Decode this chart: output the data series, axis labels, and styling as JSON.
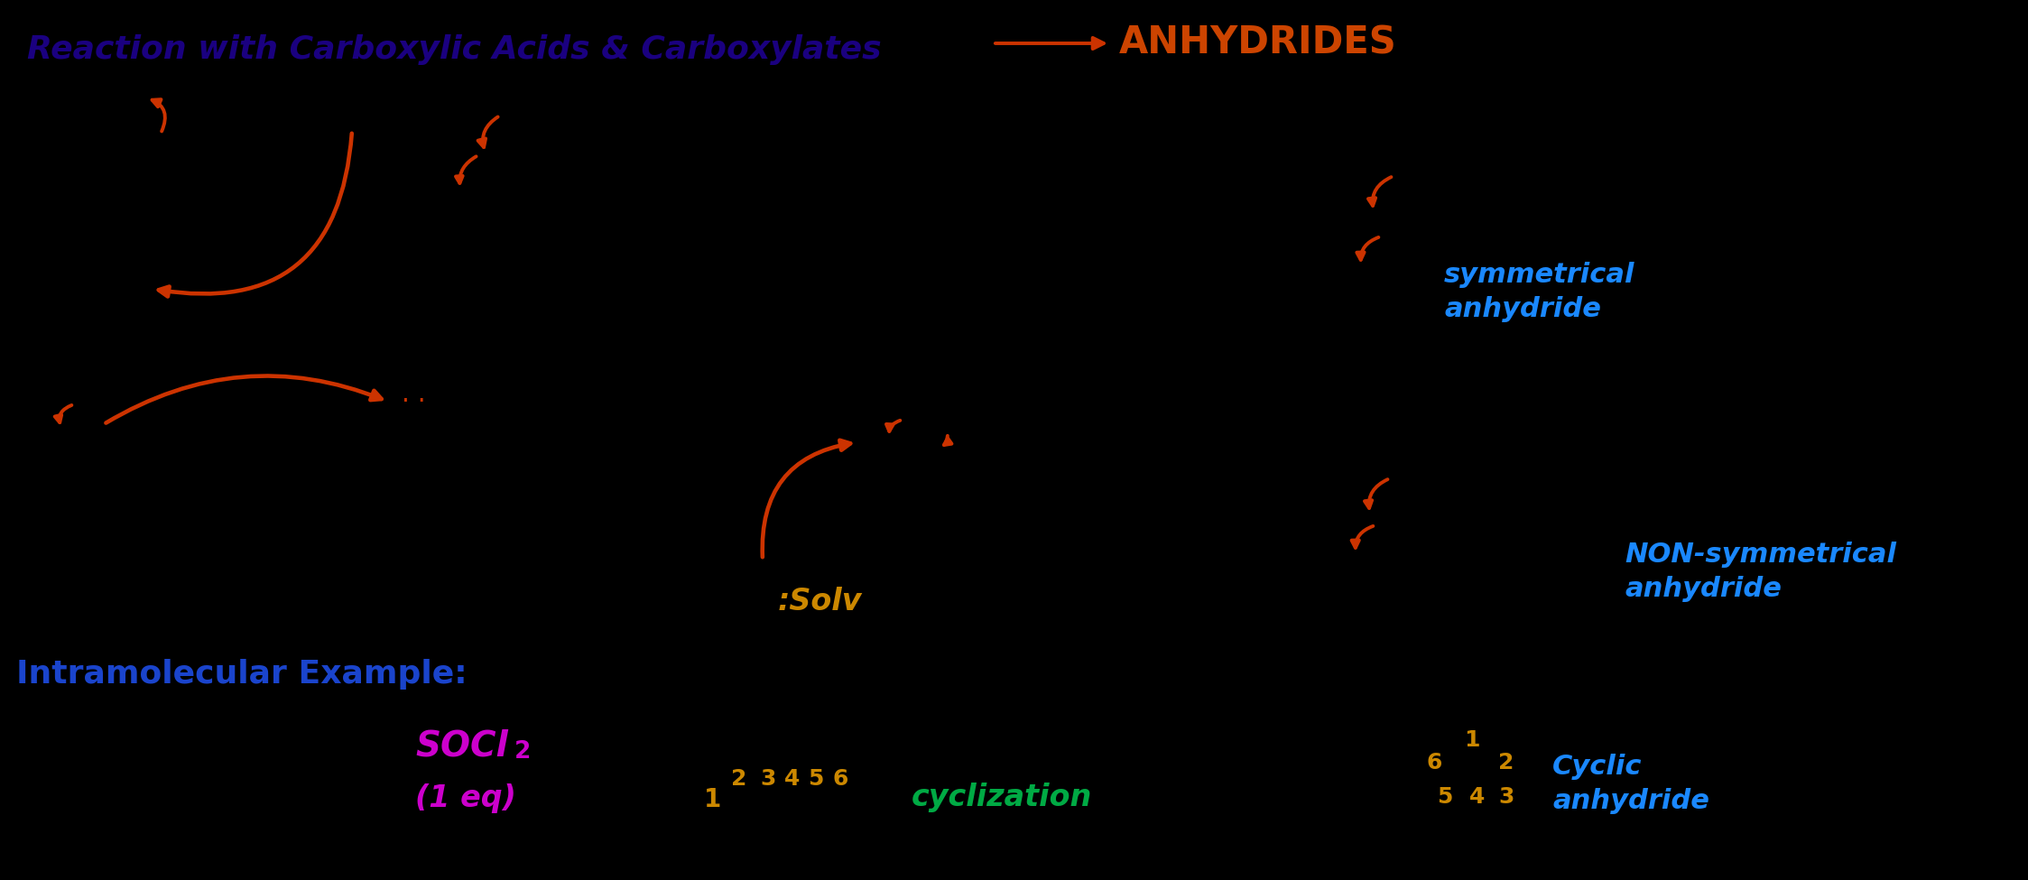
{
  "bg_color": "#000000",
  "title_text": "Reaction with Carboxylic Acids & Carboxylates",
  "title_color": "#1a0080",
  "title_fontsize": 26,
  "arrow_color": "#cc3300",
  "anhydrides_text": "ANHYDRIDES",
  "anhydrides_color": "#cc4400",
  "symmetrical_text": "symmetrical\nanhydride",
  "symmetrical_color": "#1a88ff",
  "non_sym_text": "NON-symmetrical\nanhydride",
  "non_sym_color": "#1a88ff",
  "cyclic_text": "Cyclic\nanhydride",
  "cyclic_color": "#1a88ff",
  "intramolecular_text": "Intramolecular Example:",
  "intramolecular_color": "#1a44cc",
  "solu_text": ":Solv",
  "solu_color": "#cc8800",
  "socl2_color": "#cc00cc",
  "cyclization_text": "cyclization",
  "cyclization_color": "#00aa44",
  "chain_color": "#cc8800",
  "ring_color": "#cc8800"
}
